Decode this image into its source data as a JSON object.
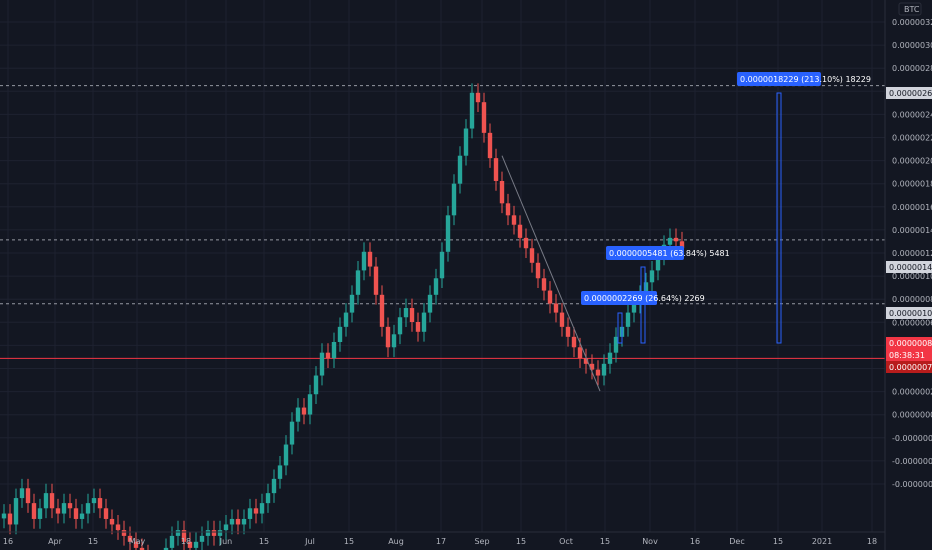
{
  "chart_data": {
    "type": "candlestick",
    "currency_label": "BTC",
    "colors": {
      "background": "#131722",
      "up": "#26a69a",
      "down": "#ef5350",
      "grid": "#1e2230",
      "text": "#b2b5be",
      "annotation": "#2962ff",
      "price_line": "#d1d4dc",
      "red_line": "#f23645"
    },
    "y_axis": {
      "scale": "log",
      "ticks": [
        "0.0000032000",
        "0.0000030000",
        "0.0000028000",
        "0.0000026000",
        "0.0000024000",
        "0.0000022000",
        "0.0000020000",
        "0.0000018000",
        "0.0000016000",
        "0.0000014000",
        "0.0000012000",
        "0.0000010000",
        "0.0000008000",
        "0.0000006500",
        "0.0000005000",
        "0.0000003500",
        "0.0000002000",
        "0.0000000500",
        "-0.0000001100",
        "-0.0000002700",
        "-0.0000004200"
      ],
      "price_badges": [
        {
          "label": "0.0000026783",
          "style": "gray"
        },
        {
          "label": "0.0000014080",
          "style": "gray"
        },
        {
          "label": "0.0000010789",
          "style": "gray"
        },
        {
          "label": "0.0000008591",
          "style": "red"
        },
        {
          "label": "08:38:31",
          "style": "red"
        },
        {
          "label": "0.0000007635",
          "style": "darkred"
        }
      ]
    },
    "x_axis": {
      "ticks": [
        "16",
        "Apr",
        "15",
        "May",
        "18",
        "Jun",
        "15",
        "Jul",
        "15",
        "Aug",
        "17",
        "Sep",
        "15",
        "Oct",
        "15",
        "Nov",
        "16",
        "Dec",
        "15",
        "2021",
        "18"
      ]
    },
    "horizontal_lines": [
      {
        "value": 2.6783e-06,
        "style": "dashed"
      },
      {
        "value": 1.408e-06,
        "style": "dashed"
      },
      {
        "value": 1.0789e-06,
        "style": "dashed"
      },
      {
        "value": 8.591e-07,
        "style": "solid-red"
      }
    ],
    "annotations": [
      {
        "label": "0.0000018229 (213.10%) 18229"
      },
      {
        "label": "0.0000005481 (63.84%) 5481"
      },
      {
        "label": "0.0000002269 (26.64%) 2269"
      }
    ],
    "series_close": [
      4.5e-07,
      4.3e-07,
      4.8e-07,
      5e-07,
      4.7e-07,
      4.4e-07,
      4.6e-07,
      4.9e-07,
      4.6e-07,
      4.5e-07,
      4.7e-07,
      4.6e-07,
      4.4e-07,
      4.5e-07,
      4.7e-07,
      4.8e-07,
      4.6e-07,
      4.4e-07,
      4.3e-07,
      4.2e-07,
      4.1e-07,
      4e-07,
      3.9e-07,
      3.8e-07,
      3.7e-07,
      3.6e-07,
      3.7e-07,
      3.9e-07,
      4.1e-07,
      4.2e-07,
      4e-07,
      3.9e-07,
      4e-07,
      4.1e-07,
      4.2e-07,
      4.1e-07,
      4.2e-07,
      4.3e-07,
      4.4e-07,
      4.3e-07,
      4.4e-07,
      4.6e-07,
      4.5e-07,
      4.7e-07,
      4.9e-07,
      5.2e-07,
      5.5e-07,
      6e-07,
      6.6e-07,
      7e-07,
      6.8e-07,
      7.4e-07,
      8e-07,
      8.8e-07,
      8.6e-07,
      9.2e-07,
      9.8e-07,
      1.04e-06,
      1.12e-06,
      1.24e-06,
      1.34e-06,
      1.26e-06,
      1.12e-06,
      9.8e-07,
      9e-07,
      9.5e-07,
      1.02e-06,
      1.06e-06,
      1e-06,
      9.6e-07,
      1.04e-06,
      1.12e-06,
      1.2e-06,
      1.34e-06,
      1.56e-06,
      1.78e-06,
      2e-06,
      2.24e-06,
      2.6e-06,
      2.5e-06,
      2.2e-06,
      1.98e-06,
      1.8e-06,
      1.64e-06,
      1.56e-06,
      1.5e-06,
      1.42e-06,
      1.36e-06,
      1.28e-06,
      1.2e-06,
      1.14e-06,
      1.08e-06,
      1.04e-06,
      9.8e-07,
      9.4e-07,
      9e-07,
      8.6e-07,
      8.4e-07,
      8.2e-07,
      8e-07,
      8.4e-07,
      8.8e-07,
      9.4e-07,
      9.8e-07,
      1.04e-06,
      1.08e-06,
      1.12e-06,
      1.18e-06,
      1.24e-06,
      1.32e-06,
      1.38e-06,
      1.42e-06,
      1.4e-06,
      1.36e-06
    ]
  }
}
